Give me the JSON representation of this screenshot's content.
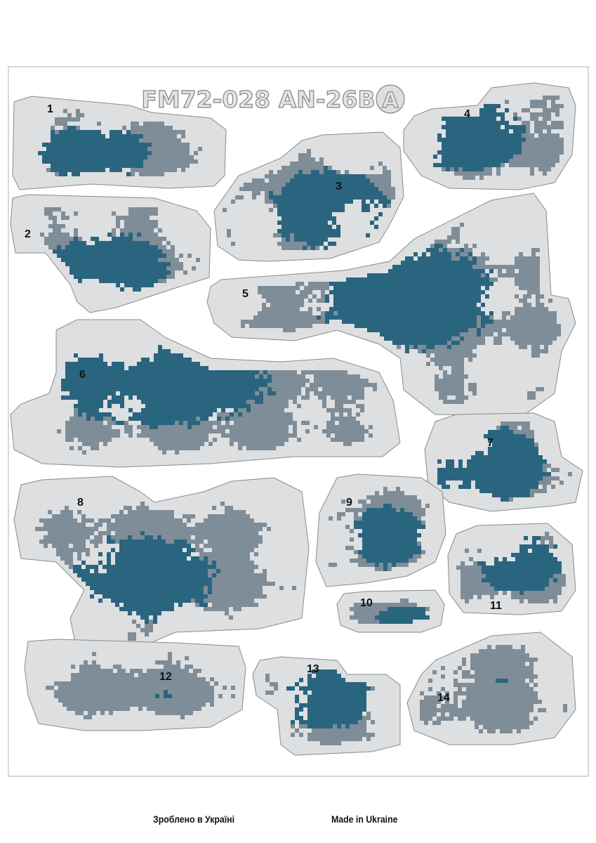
{
  "sheet": {
    "title": "FM72-028 AN-26B",
    "badge": "A",
    "pieces": [
      {
        "label": "1",
        "blue_share": 0.45
      },
      {
        "label": "2",
        "blue_share": 0.5
      },
      {
        "label": "3",
        "blue_share": 0.55
      },
      {
        "label": "4",
        "blue_share": 0.7
      },
      {
        "label": "5",
        "blue_share": 0.3
      },
      {
        "label": "6",
        "blue_share": 0.45
      },
      {
        "label": "7",
        "blue_share": 0.95
      },
      {
        "label": "8",
        "blue_share": 0.3
      },
      {
        "label": "9",
        "blue_share": 0.4
      },
      {
        "label": "10",
        "blue_share": 0.3
      },
      {
        "label": "11",
        "blue_share": 0.6
      },
      {
        "label": "12",
        "blue_share": 0.0
      },
      {
        "label": "13",
        "blue_share": 0.55
      },
      {
        "label": "14",
        "blue_share": 0.0
      }
    ]
  },
  "footer": {
    "ukrainian": "Зроблено в Україні",
    "english": "Made in Ukraine"
  },
  "colors": {
    "piece_fill": "#dedfe0",
    "piece_stroke": "#8a8a8a",
    "camo_grey": "#7f8d98",
    "camo_blue": "#2a6580",
    "frame": "#b0b0b0"
  }
}
